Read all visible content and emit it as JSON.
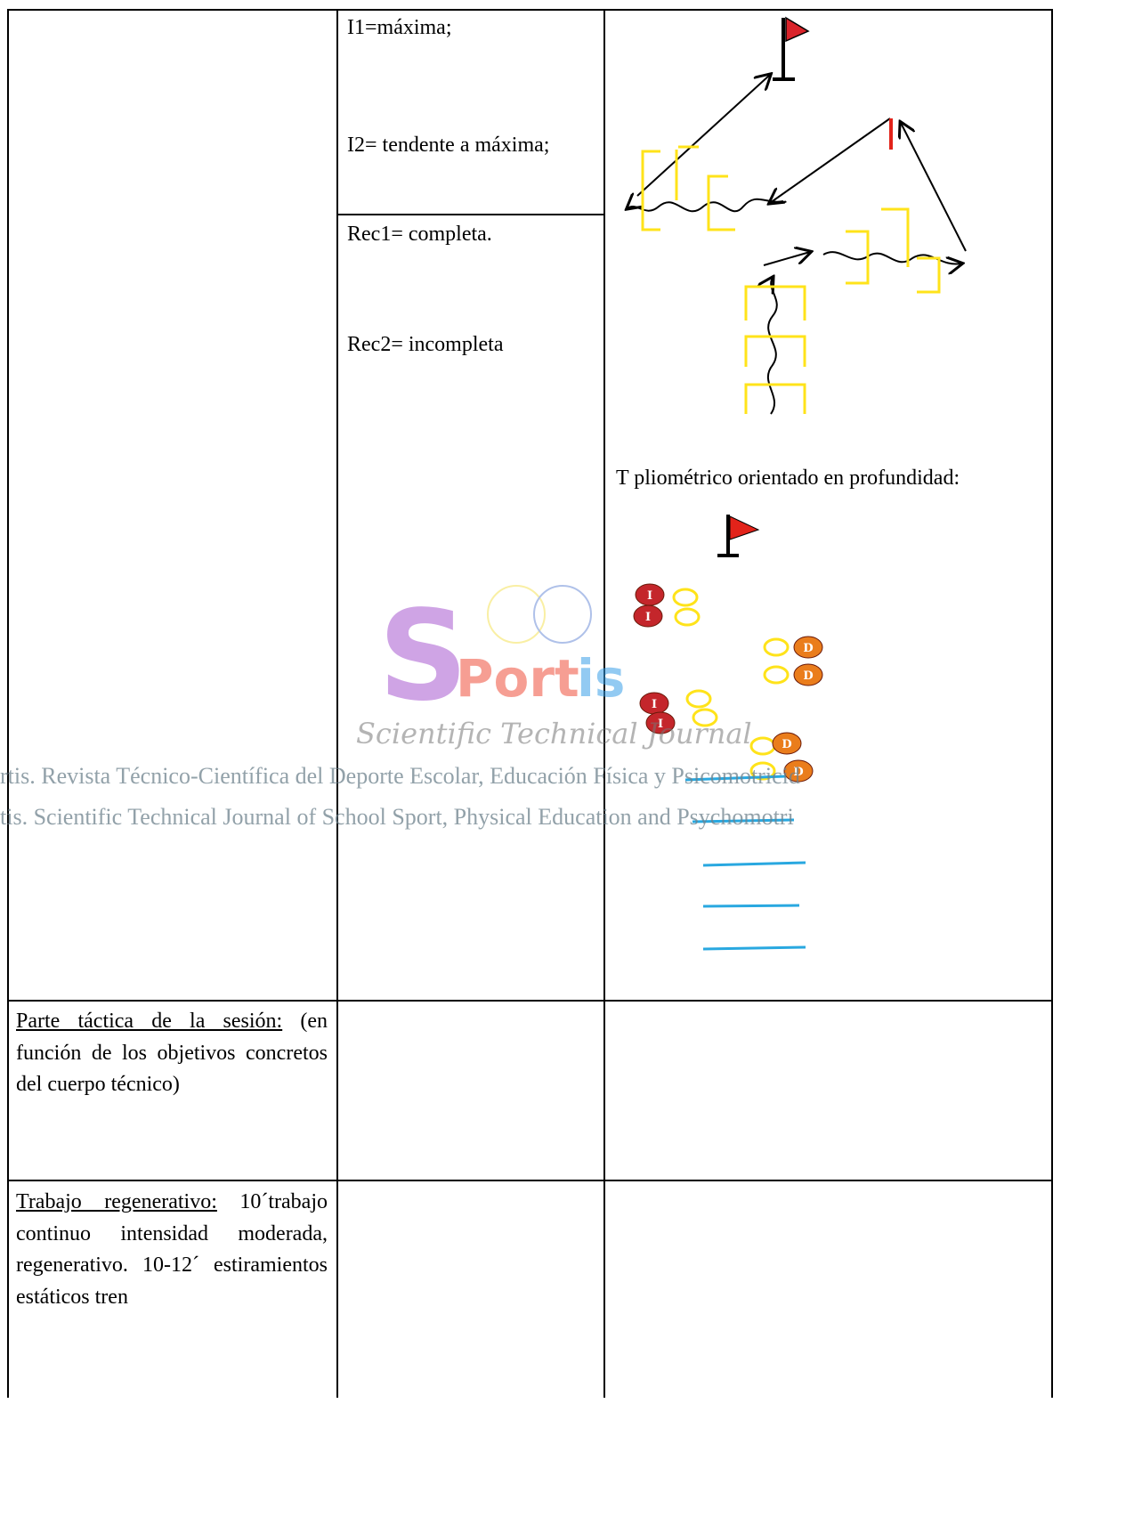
{
  "middle": {
    "intensity_1": "I1=máxima;",
    "intensity_2": "I2= tendente a máxima;",
    "recovery_1": "Rec1= completa.",
    "recovery_2": "Rec2= incompleta"
  },
  "diagram": {
    "caption": "T pliométrico orientado en profundidad:",
    "ball_labels": [
      "I",
      "D"
    ]
  },
  "rows": [
    {
      "heading": "Parte táctica de la sesión:",
      "text": " (en función de los objetivos concretos del cuerpo técnico)"
    },
    {
      "heading": "Trabajo regenerativo:",
      "text": " 10´trabajo continuo intensidad moderada, regenerativo. 10-12´ estiramientos estáticos tren"
    }
  ],
  "watermark": {
    "logo_initial": "S",
    "logo_middle": "Port",
    "logo_end": "is",
    "subtitle": "Scientific Technical Journal",
    "line_1": "rtis. Revista Técnico-Científica del Deporte Escolar, Educación Física y Psicomotricid",
    "line_2": "tis. Scientific Technical Journal of School Sport, Physical Education and Psychomotri"
  }
}
